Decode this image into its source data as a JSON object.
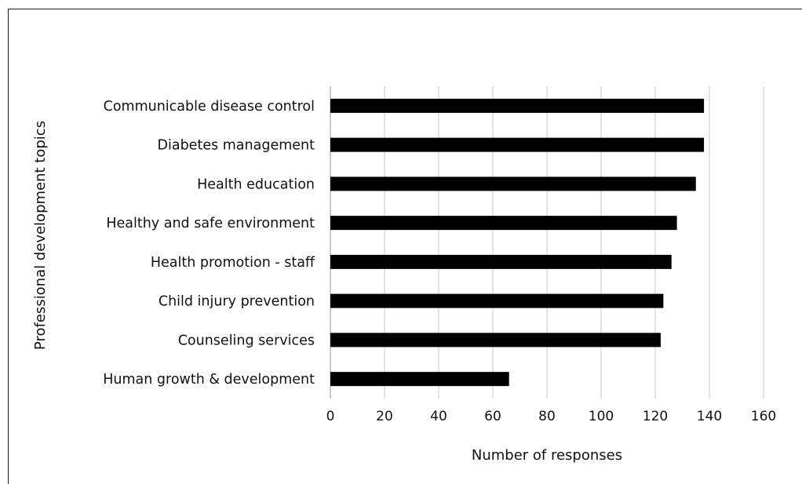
{
  "chart_data": {
    "type": "bar",
    "orientation": "horizontal",
    "categories": [
      "Communicable disease control",
      "Diabetes management",
      "Health education",
      "Healthy and safe environment",
      "Health promotion - staff",
      "Child injury prevention",
      "Counseling services",
      "Human growth & development"
    ],
    "values": [
      138,
      138,
      135,
      128,
      126,
      123,
      122,
      66
    ],
    "xlabel": "Number of responses",
    "ylabel": "Professional development topics",
    "xlim": [
      0,
      160
    ],
    "xticks": [
      "0",
      "20",
      "40",
      "60",
      "80",
      "100",
      "120",
      "140",
      "160"
    ],
    "grid": "vertical",
    "bar_color": "#000000",
    "grid_color": "#c8c8c8"
  }
}
